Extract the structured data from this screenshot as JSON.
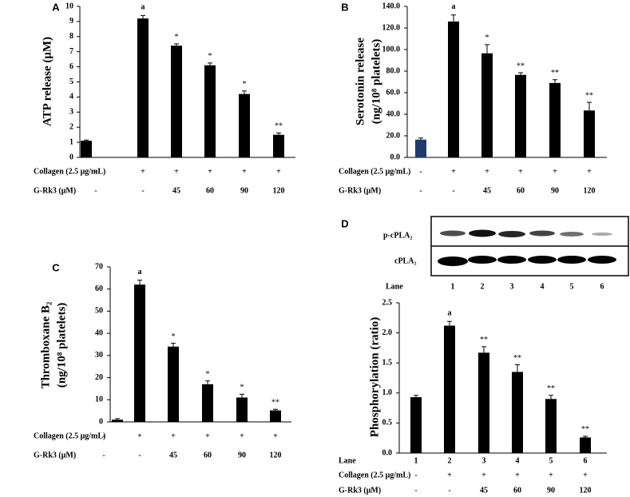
{
  "chart_data": [
    {
      "type": "bar",
      "panel": "A",
      "y_label": [
        "ATP release (μM)"
      ],
      "color": "#000000",
      "values": [
        1.1,
        9.2,
        7.4,
        6.1,
        4.2,
        1.5
      ],
      "errors": [
        0.05,
        0.2,
        0.12,
        0.15,
        0.2,
        0.12
      ],
      "annotations": [
        null,
        "a",
        "*",
        "*",
        "*",
        "**"
      ],
      "ylim": [
        0,
        10
      ],
      "yticks": [
        0,
        1,
        2,
        3,
        4,
        5,
        6,
        7,
        8,
        9,
        10
      ],
      "treatments": [
        {
          "label": "Collagen (2.5 μg/mL)",
          "values": [
            "-",
            "+",
            "+",
            "+",
            "+",
            "+"
          ]
        },
        {
          "label": "G-Rk3 (μM)",
          "values": [
            "-",
            "-",
            "45",
            "60",
            "90",
            "120"
          ]
        }
      ]
    },
    {
      "type": "bar",
      "panel": "B",
      "y_label": [
        "Serotonin release",
        "(ng/10⁸ platelets)"
      ],
      "color": "#000000",
      "bar_colors": [
        "#1f3a6e",
        "#000000",
        "#000000",
        "#000000",
        "#000000",
        "#000000"
      ],
      "values": [
        16.5,
        126,
        96.5,
        76.5,
        69,
        43.5
      ],
      "errors": [
        1.5,
        6,
        8,
        2,
        3,
        7.5
      ],
      "annotations": [
        null,
        "a",
        "*",
        "**",
        "**",
        "**"
      ],
      "ylim": [
        0,
        140
      ],
      "yticks": [
        {
          "value": 0,
          "label": "0.0"
        },
        {
          "value": 20,
          "label": "20.0"
        },
        {
          "value": 40,
          "label": "40.0"
        },
        {
          "value": 60,
          "label": "60.0"
        },
        {
          "value": 80,
          "label": "80.0"
        },
        {
          "value": 100,
          "label": "100.0"
        },
        {
          "value": 120,
          "label": "120.0"
        },
        {
          "value": 140,
          "label": "140.0"
        }
      ],
      "treatments": [
        {
          "label": "Collagen (2.5 μg/mL)",
          "values": [
            "-",
            "+",
            "+",
            "+",
            "+",
            "+"
          ]
        },
        {
          "label": "G-Rk3 (μM)",
          "values": [
            "-",
            "-",
            "45",
            "60",
            "90",
            "120"
          ]
        }
      ]
    },
    {
      "type": "bar",
      "panel": "C",
      "y_label": [
        "Thromboxane B₂",
        "(ng/10⁸ platelets)"
      ],
      "color": "#000000",
      "values": [
        1,
        62,
        34,
        17,
        11,
        5.2
      ],
      "errors": [
        0.5,
        2,
        1.5,
        1.5,
        1.5,
        0.5
      ],
      "annotations": [
        null,
        "a",
        "*",
        "*",
        "*",
        "**"
      ],
      "ylim": [
        0,
        70
      ],
      "yticks": [
        0,
        10,
        20,
        30,
        40,
        50,
        60,
        70
      ],
      "treatments": [
        {
          "label": "Collagen (2.5 μg/mL)",
          "values": [
            "-",
            "+",
            "+",
            "+",
            "+",
            "+"
          ]
        },
        {
          "label": "G-Rk3 (μM)",
          "values": [
            "-",
            "-",
            "45",
            "60",
            "90",
            "120"
          ]
        }
      ]
    },
    {
      "type": "bar",
      "panel": "D",
      "y_label": [
        "Phosphorylation (ratio)"
      ],
      "color": "#000000",
      "values": [
        0.93,
        2.12,
        1.67,
        1.35,
        0.9,
        0.26
      ],
      "errors": [
        0.03,
        0.07,
        0.1,
        0.12,
        0.06,
        0.02
      ],
      "annotations": [
        null,
        "a",
        "**",
        "**",
        "**",
        "**"
      ],
      "ylim": [
        0,
        2.5
      ],
      "yticks": [
        {
          "value": 0,
          "label": "0.0"
        },
        {
          "value": 0.5,
          "label": "0.5"
        },
        {
          "value": 1,
          "label": "1.0"
        },
        {
          "value": 1.5,
          "label": "1.5"
        },
        {
          "value": 2,
          "label": "2.0"
        },
        {
          "value": 2.5,
          "label": "2.5"
        }
      ],
      "treatments": [
        {
          "label": "Lane",
          "values": [
            "1",
            "2",
            "3",
            "4",
            "5",
            "6"
          ]
        },
        {
          "label": "Collagen  (2.5 μg/mL)",
          "values": [
            "-",
            "+",
            "+",
            "+",
            "+",
            "+"
          ]
        },
        {
          "label": "G-Rk3 (μM)",
          "values": [
            "-",
            "-",
            "45",
            "60",
            "90",
            "120"
          ]
        }
      ]
    }
  ],
  "blot": {
    "rows": [
      "p-cPLA₂",
      "cPLA₂"
    ],
    "lane_label": "Lane",
    "lanes": [
      "1",
      "2",
      "3",
      "4",
      "5",
      "6"
    ]
  }
}
